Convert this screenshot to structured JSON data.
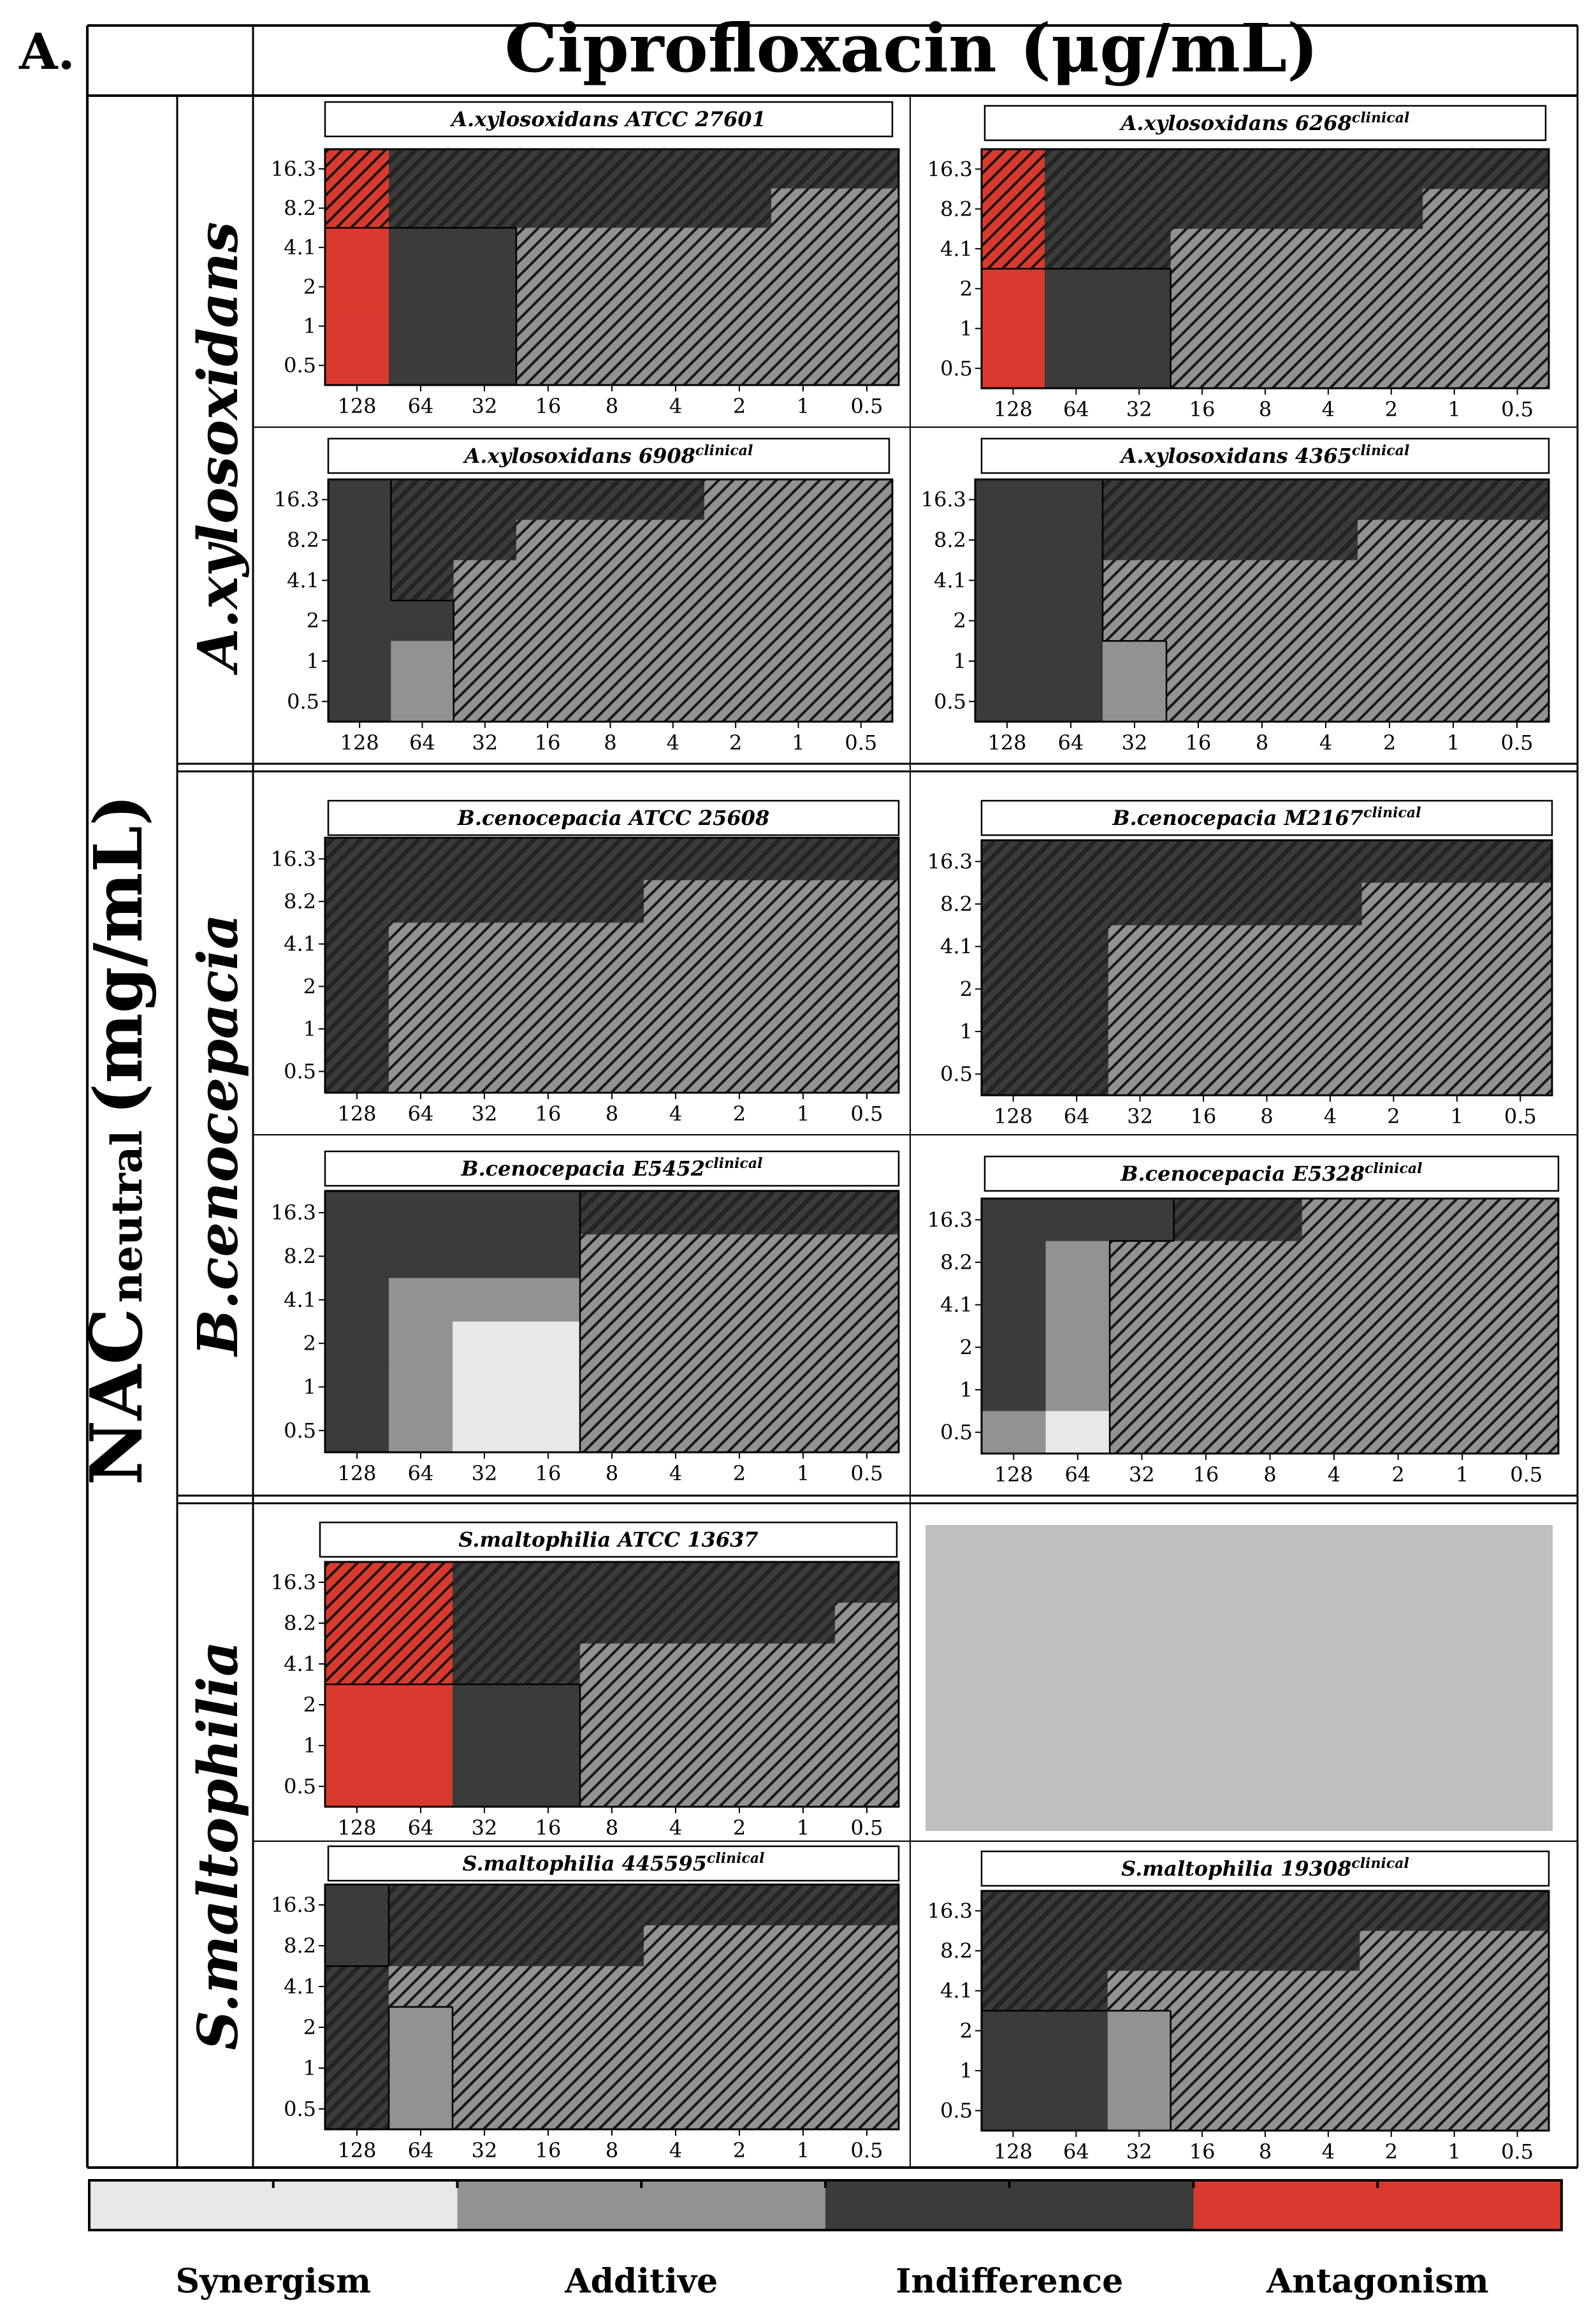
{
  "panel_letter": "A.",
  "header_title": "Ciprofloxacin (μg/mL)",
  "side_label_main": "NAC",
  "side_label_sub": "neutral",
  "side_label_units": "(mg/mL)",
  "species": [
    "A.xylosoxidans",
    "B.cenocepacia",
    "S.maltophilia"
  ],
  "colors": {
    "synergism": "#e9e7ea",
    "additive": "#939290",
    "indifference": "#3b3b39",
    "antagonism": "#da3a2d",
    "placeholder": "#bebfc1",
    "hatch": "#111111"
  },
  "legend": [
    {
      "label": "Synergism",
      "key": "S"
    },
    {
      "label": "Additive",
      "key": "A"
    },
    {
      "label": "Indifference",
      "key": "I"
    },
    {
      "label": "Antagonism",
      "key": "X"
    }
  ],
  "chart_data": [
    {
      "type": "heatmap",
      "title": "A.xylosoxidans ATCC 27601",
      "title_sup": "",
      "x_labels": [
        "128",
        "64",
        "32",
        "16",
        "8",
        "4",
        "2",
        "1",
        "0.5"
      ],
      "y_labels": [
        "16.3",
        "8.2",
        "4.1",
        "2",
        "1",
        "0.5"
      ],
      "xlabel": "Ciprofloxacin (μg/mL)",
      "ylabel": "NAC neutral (mg/mL)",
      "legend_key": {
        "S": "Synergism",
        "A": "Additive",
        "I": "Indifference",
        "X": "Antagonism"
      },
      "hatch_note": "y=1 means the cell is drawn hatched",
      "interaction": [
        "XIIIIIIII",
        "XIIIIIIAA",
        "XIIAAAAAA",
        "XIIAAAAAA",
        "XIIAAAAAA",
        "XIIAAAAAA"
      ],
      "hatch": [
        "111111111",
        "111111111",
        "000111111",
        "000111111",
        "000111111",
        "000111111"
      ]
    },
    {
      "type": "heatmap",
      "title": "A.xylosoxidans 6268",
      "title_sup": "clinical",
      "x_labels": [
        "128",
        "64",
        "32",
        "16",
        "8",
        "4",
        "2",
        "1",
        "0.5"
      ],
      "y_labels": [
        "16.3",
        "8.2",
        "4.1",
        "2",
        "1",
        "0.5"
      ],
      "interaction": [
        "XIIIIIIII",
        "XIIIIIIAA",
        "XIIAAAAAA",
        "XIIAAAAAA",
        "XIIAAAAAA",
        "XIIAAAAAA"
      ],
      "hatch": [
        "111111111",
        "111111111",
        "111111111",
        "000111111",
        "000111111",
        "000111111"
      ]
    },
    {
      "type": "heatmap",
      "title": "A.xylosoxidans 6908",
      "title_sup": "clinical",
      "x_labels": [
        "128",
        "64",
        "32",
        "16",
        "8",
        "4",
        "2",
        "1",
        "0.5"
      ],
      "y_labels": [
        "16.3",
        "8.2",
        "4.1",
        "2",
        "1",
        "0.5"
      ],
      "interaction": [
        "IIIIIIAAA",
        "IIIAAAAAA",
        "IIAAAAAAA",
        "IIAAAAAAA",
        "IAAAAAAAA",
        "IAAAAAAAA"
      ],
      "hatch": [
        "011111111",
        "011111111",
        "011111111",
        "001111111",
        "001111111",
        "001111111"
      ]
    },
    {
      "type": "heatmap",
      "title": "A.xylosoxidans 4365",
      "title_sup": "clinical",
      "x_labels": [
        "128",
        "64",
        "32",
        "16",
        "8",
        "4",
        "2",
        "1",
        "0.5"
      ],
      "y_labels": [
        "16.3",
        "8.2",
        "4.1",
        "2",
        "1",
        "0.5"
      ],
      "interaction": [
        "IIIIIIIII",
        "IIIIIIAAA",
        "IIAAAAAAA",
        "IIAAAAAAA",
        "IIAAAAAAA",
        "IIAAAAAAA"
      ],
      "hatch": [
        "001111111",
        "001111111",
        "001111111",
        "001111111",
        "000111111",
        "000111111"
      ]
    },
    {
      "type": "heatmap",
      "title": "B.cenocepacia ATCC 25608",
      "title_sup": "",
      "x_labels": [
        "128",
        "64",
        "32",
        "16",
        "8",
        "4",
        "2",
        "1",
        "0.5"
      ],
      "y_labels": [
        "16.3",
        "8.2",
        "4.1",
        "2",
        "1",
        "0.5"
      ],
      "interaction": [
        "IIIIIIIII",
        "IIIIIAAAA",
        "IAAAAAAAA",
        "IAAAAAAAA",
        "IAAAAAAAA",
        "IAAAAAAAA"
      ],
      "hatch": [
        "111111111",
        "111111111",
        "111111111",
        "111111111",
        "111111111",
        "111111111"
      ]
    },
    {
      "type": "heatmap",
      "title": "B.cenocepacia M2167",
      "title_sup": "clinical",
      "x_labels": [
        "128",
        "64",
        "32",
        "16",
        "8",
        "4",
        "2",
        "1",
        "0.5"
      ],
      "y_labels": [
        "16.3",
        "8.2",
        "4.1",
        "2",
        "1",
        "0.5"
      ],
      "interaction": [
        "IIIIIIIII",
        "IIIIIIAAA",
        "IIAAAAAAA",
        "IIAAAAAAA",
        "IIAAAAAAA",
        "IIAAAAAAA"
      ],
      "hatch": [
        "111111111",
        "111111111",
        "111111111",
        "111111111",
        "111111111",
        "111111111"
      ]
    },
    {
      "type": "heatmap",
      "title": "B.cenocepacia E5452",
      "title_sup": "clinical",
      "x_labels": [
        "128",
        "64",
        "32",
        "16",
        "8",
        "4",
        "2",
        "1",
        "0.5"
      ],
      "y_labels": [
        "16.3",
        "8.2",
        "4.1",
        "2",
        "1",
        "0.5"
      ],
      "interaction": [
        "IIIIIIIII",
        "IIIIAAAAA",
        "IAAAAAAAA",
        "IASSAAAAA",
        "IASSAAAAA",
        "IASSAAAAA"
      ],
      "hatch": [
        "000011111",
        "000011111",
        "000011111",
        "000011111",
        "000011111",
        "000011111"
      ]
    },
    {
      "type": "heatmap",
      "title": "B.cenocepacia E5328",
      "title_sup": "clinical",
      "x_labels": [
        "128",
        "64",
        "32",
        "16",
        "8",
        "4",
        "2",
        "1",
        "0.5"
      ],
      "y_labels": [
        "16.3",
        "8.2",
        "4.1",
        "2",
        "1",
        "0.5"
      ],
      "interaction": [
        "IIIIIAAAA",
        "IAAAAAAAA",
        "IAAAAAAAA",
        "IAAAAAAAA",
        "IAAAAAAAA",
        "ASAAAAAAA"
      ],
      "hatch": [
        "000111111",
        "001111111",
        "001111111",
        "001111111",
        "001111111",
        "001111111"
      ]
    },
    {
      "type": "heatmap",
      "title": "S.maltophilia ATCC 13637",
      "title_sup": "",
      "x_labels": [
        "128",
        "64",
        "32",
        "16",
        "8",
        "4",
        "2",
        "1",
        "0.5"
      ],
      "y_labels": [
        "16.3",
        "8.2",
        "4.1",
        "2",
        "1",
        "0.5"
      ],
      "interaction": [
        "XXIIIIIII",
        "XXIIIIIIA",
        "XXIIAAAAA",
        "XXIIAAAAA",
        "XXIIAAAAA",
        "XXIIAAAAA"
      ],
      "hatch": [
        "111111111",
        "111111111",
        "111111111",
        "000011111",
        "000011111",
        "000011111"
      ]
    },
    {
      "type": "heatmap",
      "title": "S.maltophilia 445595",
      "title_sup": "clinical",
      "x_labels": [
        "128",
        "64",
        "32",
        "16",
        "8",
        "4",
        "2",
        "1",
        "0.5"
      ],
      "y_labels": [
        "16.3",
        "8.2",
        "4.1",
        "2",
        "1",
        "0.5"
      ],
      "interaction": [
        "IIIIIIIII",
        "IIIIIAAAA",
        "IAAAAAAAA",
        "IAAAAAAAA",
        "IAAAAAAAA",
        "IAAAAAAAA"
      ],
      "hatch": [
        "011111111",
        "011111111",
        "111111111",
        "101111111",
        "101111111",
        "101111111"
      ]
    },
    {
      "type": "heatmap",
      "title": "S.maltophilia 19308",
      "title_sup": "clinical",
      "x_labels": [
        "128",
        "64",
        "32",
        "16",
        "8",
        "4",
        "2",
        "1",
        "0.5"
      ],
      "y_labels": [
        "16.3",
        "8.2",
        "4.1",
        "2",
        "1",
        "0.5"
      ],
      "interaction": [
        "IIIIIIIII",
        "IIIIIIAAA",
        "IIAAAAAAA",
        "IIAAAAAAA",
        "IIAAAAAAA",
        "IIAAAAAAA"
      ],
      "hatch": [
        "111111111",
        "111111111",
        "111111111",
        "000111111",
        "000111111",
        "000111111"
      ]
    }
  ]
}
